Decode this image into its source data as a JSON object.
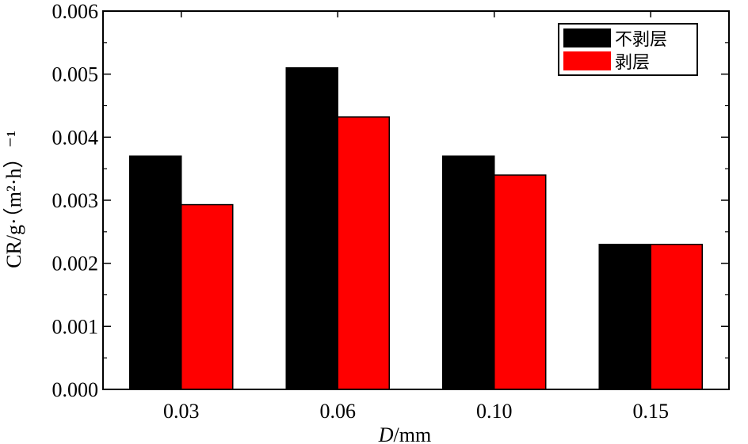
{
  "chart_data": {
    "type": "bar",
    "categories": [
      "0.03",
      "0.06",
      "0.10",
      "0.15"
    ],
    "series": [
      {
        "name": "不剥层",
        "color": "#000000",
        "values": [
          0.0037,
          0.0051,
          0.0037,
          0.0023
        ]
      },
      {
        "name": "剥层",
        "color": "#ff0000",
        "values": [
          0.00293,
          0.00432,
          0.0034,
          0.0023
        ]
      }
    ],
    "xlabel_italic": "D",
    "xlabel_rest": "/mm",
    "ylabel": "CR/g·（m²·h）⁻¹",
    "ylim": [
      0,
      0.006
    ],
    "yticks": [
      "0.000",
      "0.001",
      "0.002",
      "0.003",
      "0.004",
      "0.005",
      "0.006"
    ],
    "grid": false,
    "legend_position": "top-right"
  }
}
